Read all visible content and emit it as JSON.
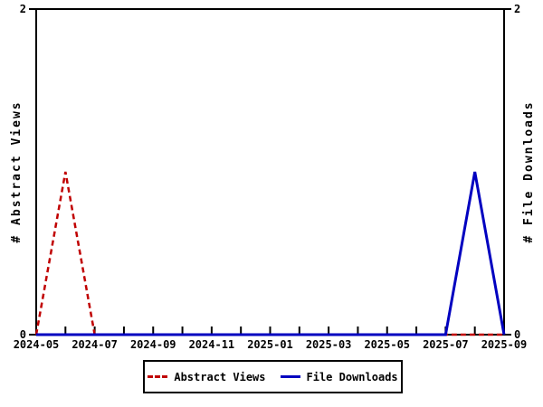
{
  "chart_data": {
    "type": "line",
    "title": "",
    "x": [
      "2024-05",
      "2024-06",
      "2024-07",
      "2024-08",
      "2024-09",
      "2024-10",
      "2024-11",
      "2024-12",
      "2025-01",
      "2025-02",
      "2025-03",
      "2025-04",
      "2025-05",
      "2025-06",
      "2025-07",
      "2025-08",
      "2025-09"
    ],
    "xtick_labels": [
      "2024-05",
      "2024-07",
      "2024-09",
      "2024-11",
      "2025-01",
      "2025-03",
      "2025-05",
      "2025-07",
      "2025-09"
    ],
    "series": [
      {
        "name": "Abstract Views",
        "color": "#c00000",
        "line_style": "dashed",
        "axis": "left",
        "values": [
          0,
          1,
          0,
          0,
          0,
          0,
          0,
          0,
          0,
          0,
          0,
          0,
          0,
          0,
          0,
          0,
          0
        ]
      },
      {
        "name": "File Downloads",
        "color": "#0000c0",
        "line_style": "solid",
        "axis": "right",
        "values": [
          0,
          0,
          0,
          0,
          0,
          0,
          0,
          0,
          0,
          0,
          0,
          0,
          0,
          0,
          0,
          1,
          0
        ]
      }
    ],
    "ylabel_left": "# Abstract Views",
    "ylabel_right": "# File Downloads",
    "ylim": [
      0,
      2
    ],
    "yticks": [
      0,
      2
    ],
    "ytick_labels": [
      "0",
      "2"
    ],
    "grid": false,
    "legend_position": "bottom-center"
  }
}
